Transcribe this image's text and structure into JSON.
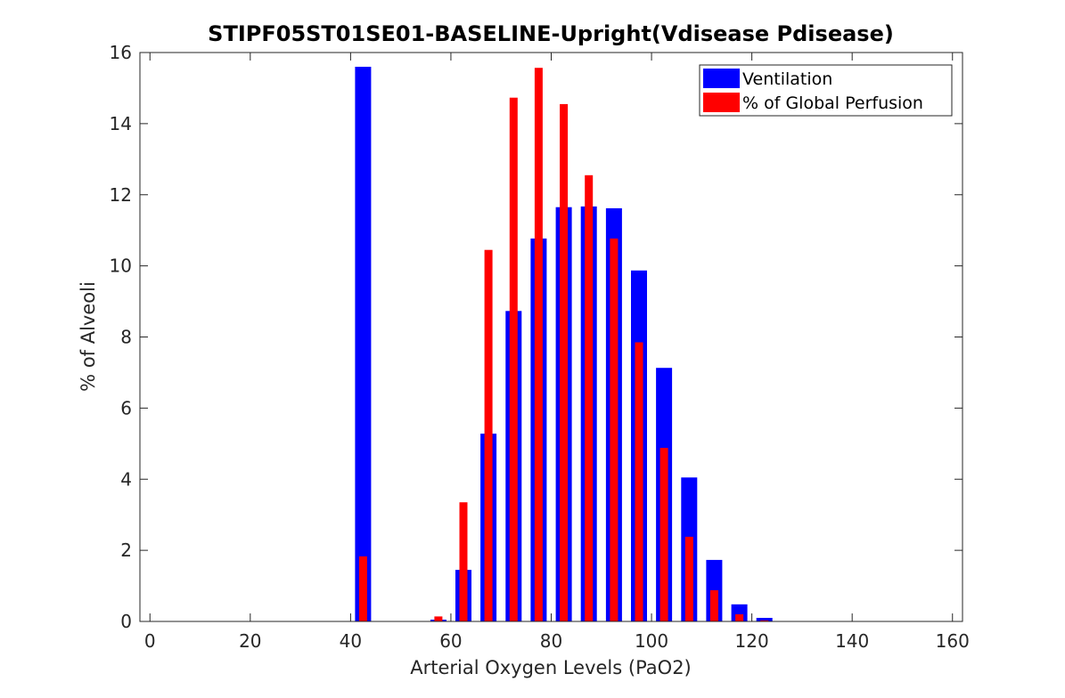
{
  "chart_data": {
    "type": "bar",
    "title": "STIPF05ST01SE01-BASELINE-Upright(Vdisease Pdisease)",
    "xlabel": "Arterial Oxygen Levels (PaO2)",
    "ylabel": "% of Alveoli",
    "xlim": [
      -2,
      162
    ],
    "ylim": [
      0,
      16
    ],
    "xticks": [
      0,
      20,
      40,
      60,
      80,
      100,
      120,
      140,
      160
    ],
    "yticks": [
      0,
      2,
      4,
      6,
      8,
      10,
      12,
      14,
      16
    ],
    "grid": false,
    "legend_position": "top-right",
    "x": [
      42.5,
      57.5,
      62.5,
      67.5,
      72.5,
      77.5,
      82.5,
      87.5,
      92.5,
      97.5,
      102.5,
      107.5,
      112.5,
      117.5,
      122.5
    ],
    "series": [
      {
        "name": "Ventilation",
        "color": "#0000ff",
        "values": [
          15.6,
          0.05,
          1.45,
          5.28,
          8.73,
          10.77,
          11.65,
          11.67,
          11.62,
          9.87,
          7.13,
          4.05,
          1.73,
          0.48,
          0.1
        ]
      },
      {
        "name": "% of Global Perfusion",
        "color": "#ff0000",
        "values": [
          1.83,
          0.14,
          3.35,
          10.45,
          14.73,
          15.57,
          14.55,
          12.55,
          10.77,
          7.85,
          4.88,
          2.38,
          0.88,
          0.2,
          0.03
        ]
      }
    ]
  }
}
